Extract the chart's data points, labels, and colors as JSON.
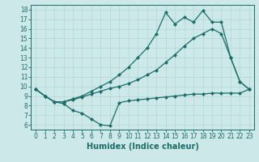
{
  "xlabel": "Humidex (Indice chaleur)",
  "bg_color": "#cce8e8",
  "line_color": "#1a6e6a",
  "grid_color": "#b8d8d8",
  "xlim": [
    -0.5,
    23.5
  ],
  "ylim": [
    5.5,
    18.5
  ],
  "xticks": [
    0,
    1,
    2,
    3,
    4,
    5,
    6,
    7,
    8,
    9,
    10,
    11,
    12,
    13,
    14,
    15,
    16,
    17,
    18,
    19,
    20,
    21,
    22,
    23
  ],
  "yticks": [
    6,
    7,
    8,
    9,
    10,
    11,
    12,
    13,
    14,
    15,
    16,
    17,
    18
  ],
  "line_bottom_x": [
    0,
    1,
    2,
    3,
    4,
    5,
    6,
    7,
    8,
    9,
    10,
    11,
    12,
    13,
    14,
    15,
    16,
    17,
    18,
    19,
    20,
    21,
    22,
    23
  ],
  "line_bottom_y": [
    9.7,
    9.0,
    8.4,
    8.2,
    7.5,
    7.2,
    6.6,
    6.0,
    5.9,
    8.3,
    8.5,
    8.6,
    8.7,
    8.8,
    8.9,
    9.0,
    9.1,
    9.2,
    9.2,
    9.3,
    9.3,
    9.3,
    9.3,
    9.7
  ],
  "line_mid_x": [
    0,
    1,
    2,
    3,
    4,
    5,
    6,
    7,
    8,
    9,
    10,
    11,
    12,
    13,
    14,
    15,
    16,
    17,
    18,
    19,
    20,
    21,
    22,
    23
  ],
  "line_mid_y": [
    9.7,
    9.0,
    8.4,
    8.4,
    8.6,
    8.9,
    9.2,
    9.5,
    9.8,
    10.0,
    10.3,
    10.7,
    11.2,
    11.7,
    12.5,
    13.3,
    14.2,
    15.0,
    15.5,
    16.0,
    15.5,
    13.0,
    10.5,
    9.7
  ],
  "line_top_x": [
    0,
    1,
    2,
    3,
    4,
    5,
    6,
    7,
    8,
    9,
    10,
    11,
    12,
    13,
    14,
    15,
    16,
    17,
    18,
    19,
    20,
    21,
    22,
    23
  ],
  "line_top_y": [
    9.7,
    9.0,
    8.4,
    8.4,
    8.7,
    9.0,
    9.5,
    10.0,
    10.5,
    11.2,
    12.0,
    13.0,
    14.0,
    15.5,
    17.7,
    16.5,
    17.2,
    16.7,
    17.9,
    16.7,
    16.7,
    13.0,
    10.5,
    9.7
  ],
  "marker": "D",
  "markersize": 2.0,
  "linewidth": 0.9,
  "xlabel_fontsize": 7,
  "tick_fontsize": 5.5
}
